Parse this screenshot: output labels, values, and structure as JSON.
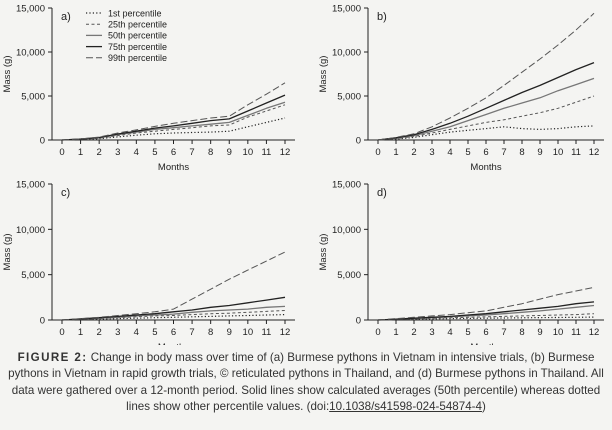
{
  "chart_data": [
    {
      "panel": "a)",
      "type": "line",
      "xlabel": "Months",
      "ylabel": "Mass (g)",
      "ylim": [
        0,
        15000
      ],
      "yticks": [
        "0",
        "5,000",
        "10,000",
        "15,000"
      ],
      "x": [
        0,
        1,
        2,
        3,
        4,
        5,
        6,
        7,
        8,
        9,
        10,
        11,
        12
      ],
      "xticks": [
        "0",
        "1",
        "2",
        "3",
        "4",
        "5",
        "6",
        "7",
        "8",
        "9",
        "10",
        "11",
        "12"
      ],
      "legend": "top-left",
      "series": [
        {
          "name": "1st percentile",
          "style": "dotted",
          "values": [
            0,
            60,
            150,
            350,
            550,
            700,
            800,
            850,
            900,
            1000,
            1500,
            2000,
            2500
          ]
        },
        {
          "name": "25th percentile",
          "style": "dashed",
          "values": [
            0,
            80,
            200,
            500,
            800,
            1000,
            1200,
            1400,
            1600,
            1700,
            2600,
            3300,
            4000
          ]
        },
        {
          "name": "50th percentile",
          "style": "solid",
          "values": [
            0,
            100,
            250,
            600,
            900,
            1200,
            1400,
            1600,
            1800,
            2000,
            2800,
            3600,
            4300
          ]
        },
        {
          "name": "75th percentile",
          "style": "solid-dark",
          "values": [
            0,
            110,
            280,
            680,
            1000,
            1350,
            1600,
            1900,
            2200,
            2400,
            3300,
            4200,
            5100
          ]
        },
        {
          "name": "99th percentile",
          "style": "longdash",
          "values": [
            0,
            130,
            330,
            800,
            1150,
            1550,
            1900,
            2200,
            2500,
            2700,
            4000,
            5200,
            6500
          ]
        }
      ]
    },
    {
      "panel": "b)",
      "type": "line",
      "xlabel": "Months",
      "ylabel": "Mass (g)",
      "ylim": [
        0,
        15000
      ],
      "yticks": [
        "0",
        "5,000",
        "10,000",
        "15,000"
      ],
      "x": [
        0,
        1,
        2,
        3,
        4,
        5,
        6,
        7,
        8,
        9,
        10,
        11,
        12
      ],
      "xticks": [
        "0",
        "1",
        "2",
        "3",
        "4",
        "5",
        "6",
        "7",
        "8",
        "9",
        "10",
        "11",
        "12"
      ],
      "series": [
        {
          "name": "",
          "style": "dotted",
          "values": [
            0,
            100,
            300,
            600,
            900,
            1100,
            1300,
            1500,
            1300,
            1200,
            1300,
            1500,
            1600
          ]
        },
        {
          "name": "",
          "style": "dashed",
          "values": [
            0,
            150,
            400,
            800,
            1200,
            1600,
            2000,
            2300,
            2700,
            3100,
            3600,
            4300,
            5000
          ]
        },
        {
          "name": "",
          "style": "solid",
          "values": [
            0,
            200,
            500,
            1000,
            1500,
            2200,
            2900,
            3600,
            4200,
            4800,
            5600,
            6300,
            7000
          ]
        },
        {
          "name": "",
          "style": "solid-dark",
          "values": [
            0,
            250,
            600,
            1200,
            1900,
            2700,
            3600,
            4500,
            5400,
            6200,
            7100,
            8000,
            8800
          ]
        },
        {
          "name": "",
          "style": "longdash",
          "values": [
            0,
            300,
            700,
            1500,
            2500,
            3600,
            4800,
            6200,
            7700,
            9200,
            10800,
            12500,
            14400
          ]
        }
      ]
    },
    {
      "panel": "c)",
      "type": "line",
      "xlabel": "Months",
      "ylabel": "Mass (g)",
      "ylim": [
        0,
        15000
      ],
      "yticks": [
        "0",
        "5,000",
        "10,000",
        "15,000"
      ],
      "x": [
        0,
        1,
        2,
        3,
        4,
        5,
        6,
        7,
        8,
        9,
        10,
        11,
        12
      ],
      "xticks": [
        "0",
        "1",
        "2",
        "3",
        "4",
        "5",
        "6",
        "7",
        "8",
        "9",
        "10",
        "11",
        "12"
      ],
      "series": [
        {
          "name": "",
          "style": "dotted",
          "values": [
            0,
            50,
            100,
            150,
            200,
            250,
            300,
            350,
            400,
            450,
            500,
            550,
            600
          ]
        },
        {
          "name": "",
          "style": "dashed",
          "values": [
            0,
            80,
            150,
            250,
            350,
            450,
            500,
            600,
            700,
            750,
            850,
            950,
            1050
          ]
        },
        {
          "name": "",
          "style": "solid",
          "values": [
            0,
            100,
            200,
            300,
            450,
            550,
            650,
            850,
            1000,
            1100,
            1200,
            1400,
            1500
          ]
        },
        {
          "name": "",
          "style": "solid-dark",
          "values": [
            0,
            120,
            250,
            400,
            550,
            700,
            900,
            1100,
            1400,
            1600,
            1900,
            2200,
            2500
          ]
        },
        {
          "name": "",
          "style": "longdash",
          "values": [
            0,
            150,
            300,
            500,
            700,
            900,
            1200,
            2300,
            3400,
            4500,
            5500,
            6500,
            7500
          ]
        }
      ]
    },
    {
      "panel": "d)",
      "type": "line",
      "xlabel": "Months",
      "ylabel": "Mass (g)",
      "ylim": [
        0,
        15000
      ],
      "yticks": [
        "0",
        "5,000",
        "10,000",
        "15,000"
      ],
      "x": [
        0,
        1,
        2,
        3,
        4,
        5,
        6,
        7,
        8,
        9,
        10,
        11,
        12
      ],
      "xticks": [
        "0",
        "1",
        "2",
        "3",
        "4",
        "5",
        "6",
        "7",
        "8",
        "9",
        "10",
        "11",
        "12"
      ],
      "series": [
        {
          "name": "",
          "style": "dotted",
          "values": [
            0,
            40,
            80,
            120,
            150,
            180,
            200,
            220,
            240,
            260,
            280,
            300,
            320
          ]
        },
        {
          "name": "",
          "style": "dashed",
          "values": [
            0,
            60,
            120,
            180,
            250,
            300,
            350,
            400,
            450,
            500,
            550,
            600,
            700
          ]
        },
        {
          "name": "",
          "style": "solid",
          "values": [
            0,
            80,
            160,
            250,
            350,
            450,
            550,
            700,
            850,
            1000,
            1200,
            1400,
            1600
          ]
        },
        {
          "name": "",
          "style": "solid-dark",
          "values": [
            0,
            100,
            200,
            300,
            400,
            550,
            700,
            900,
            1100,
            1300,
            1500,
            1800,
            2000
          ]
        },
        {
          "name": "",
          "style": "longdash",
          "values": [
            0,
            150,
            300,
            450,
            600,
            800,
            1000,
            1400,
            1800,
            2300,
            2800,
            3200,
            3600
          ]
        }
      ]
    }
  ],
  "caption": {
    "label": "FIGURE 2:",
    "text": " Change in body mass over time of (a) Burmese pythons in Vietnam in intensive trials, (b) Burmese pythons in Vietnam in rapid growth trials, © reticulated pythons in Thailand, and (d) Burmese pythons in Thailand. All data were gathered over a 12-month period. Solid lines show calculated averages (50th percentile) whereas dotted lines show other percentile values. (doi:",
    "doi": "10.1038/s41598-024-54874-4",
    "close": ")"
  },
  "colors": {
    "background": "#f4f4f2",
    "line_dark": "#222222",
    "line_mid": "#555555",
    "line_light": "#777777",
    "axis": "#222222"
  }
}
